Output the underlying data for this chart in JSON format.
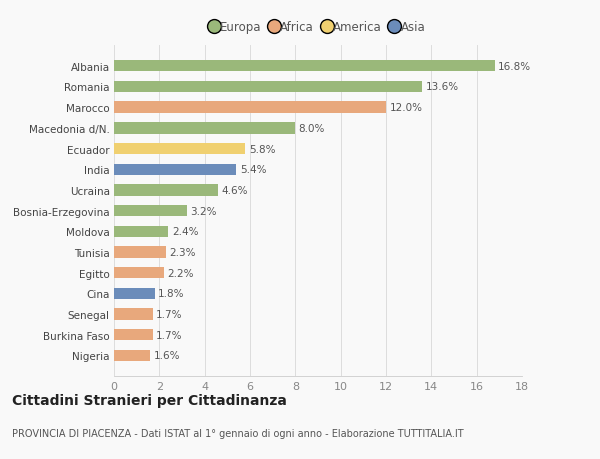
{
  "labels": [
    "Nigeria",
    "Burkina Faso",
    "Senegal",
    "Cina",
    "Egitto",
    "Tunisia",
    "Moldova",
    "Bosnia-Erzegovina",
    "Ucraina",
    "India",
    "Ecuador",
    "Macedonia d/N.",
    "Marocco",
    "Romania",
    "Albania"
  ],
  "values": [
    1.6,
    1.7,
    1.7,
    1.8,
    2.2,
    2.3,
    2.4,
    3.2,
    4.6,
    5.4,
    5.8,
    8.0,
    12.0,
    13.6,
    16.8
  ],
  "colors": [
    "#e8a87c",
    "#e8a87c",
    "#e8a87c",
    "#6b8cba",
    "#e8a87c",
    "#e8a87c",
    "#9ab87a",
    "#9ab87a",
    "#9ab87a",
    "#6b8cba",
    "#f0d070",
    "#9ab87a",
    "#e8a87c",
    "#9ab87a",
    "#9ab87a"
  ],
  "bar_height": 0.55,
  "xlim": [
    0,
    18
  ],
  "xticks": [
    0,
    2,
    4,
    6,
    8,
    10,
    12,
    14,
    16,
    18
  ],
  "legend_labels": [
    "Europa",
    "Africa",
    "America",
    "Asia"
  ],
  "legend_colors": [
    "#9ab87a",
    "#e8a87c",
    "#f0d070",
    "#6b8cba"
  ],
  "title": "Cittadini Stranieri per Cittadinanza",
  "subtitle": "PROVINCIA DI PIACENZA - Dati ISTAT al 1° gennaio di ogni anno - Elaborazione TUTTITALIA.IT",
  "bg_color": "#f9f9f9",
  "grid_color": "#dddddd",
  "label_fontsize": 7.5,
  "value_fontsize": 7.5,
  "title_fontsize": 10,
  "subtitle_fontsize": 7.0,
  "tick_fontsize": 8.0
}
